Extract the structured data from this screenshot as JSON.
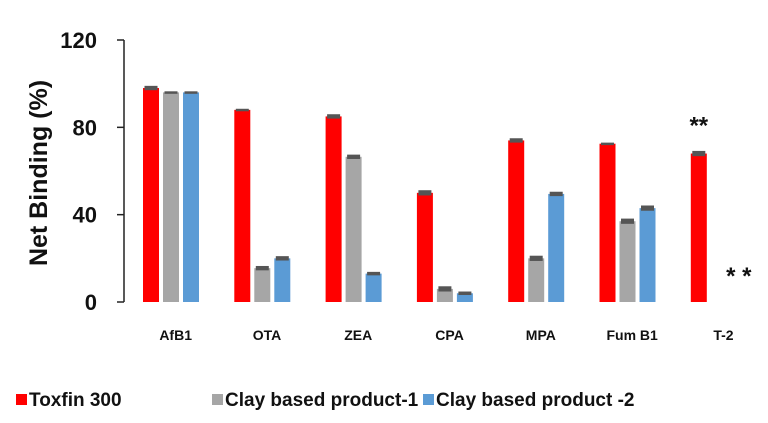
{
  "chart_data": {
    "type": "bar",
    "title": "",
    "xlabel": "",
    "ylabel": "Net Binding (%)",
    "ylim": [
      0,
      120
    ],
    "yticks": [
      0,
      40,
      80,
      120
    ],
    "grid": false,
    "legend": "bottom",
    "categories": [
      "AfB1",
      "OTA",
      "ZEA",
      "CPA",
      "MPA",
      "Fum B1",
      "T-2"
    ],
    "series": [
      {
        "name": "Toxfin 300",
        "color": "#ff0000",
        "values": [
          98,
          88,
          85,
          50,
          74,
          72.5,
          68
        ],
        "errors": [
          1,
          0.5,
          1,
          1.2,
          1,
          0.5,
          1.2
        ]
      },
      {
        "name": "Clay based product-1",
        "color": "#a6a6a6",
        "values": [
          96,
          15.5,
          66.5,
          6,
          20,
          37,
          0
        ],
        "errors": [
          0.5,
          1,
          1,
          1.2,
          1.2,
          1.2,
          0
        ]
      },
      {
        "name": "Clay based product -2",
        "color": "#5b9bd5",
        "values": [
          96,
          20,
          13,
          4,
          49.5,
          43,
          0
        ],
        "errors": [
          0.5,
          1,
          0.8,
          0.8,
          1,
          1.2,
          0
        ]
      }
    ],
    "annotations": [
      {
        "text": "**",
        "category": "T-2",
        "series": "Toxfin 300"
      },
      {
        "text": "* *",
        "category": "T-2",
        "series": "Clay based product -2"
      }
    ]
  }
}
